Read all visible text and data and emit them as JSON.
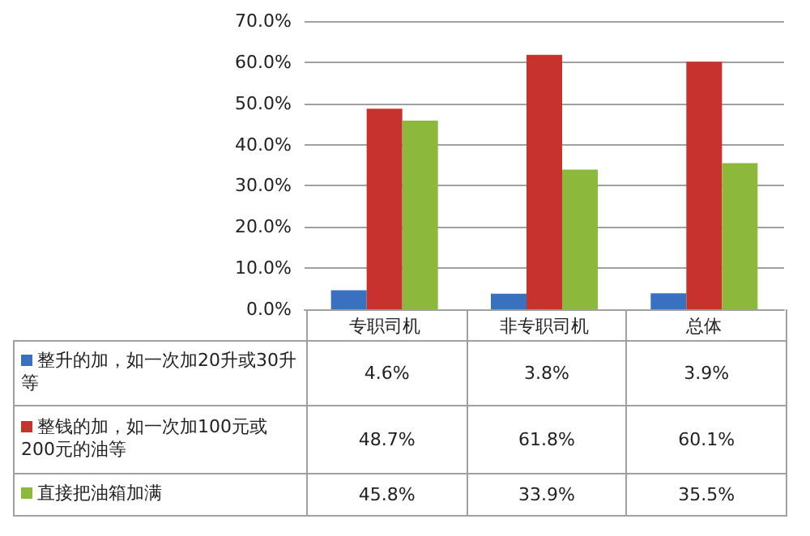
{
  "chart_data": {
    "type": "bar",
    "categories": [
      "专职司机",
      "非专职司机",
      "总体"
    ],
    "series": [
      {
        "name": "整升的加，如一次加20升或30升等",
        "color": "#3a70c0",
        "values": [
          4.6,
          3.8,
          3.9
        ],
        "value_labels": [
          "4.6%",
          "3.8%",
          "3.9%"
        ]
      },
      {
        "name": "整钱的加，如一次加100元或200元的油等",
        "color": "#c8322e",
        "values": [
          48.7,
          61.8,
          60.1
        ],
        "value_labels": [
          "48.7%",
          "61.8%",
          "60.1%"
        ]
      },
      {
        "name": "直接把油箱加满",
        "color": "#8cb83c",
        "values": [
          45.8,
          33.9,
          35.5
        ],
        "value_labels": [
          "45.8%",
          "33.9%",
          "35.5%"
        ]
      }
    ],
    "ylim": [
      0,
      70
    ],
    "yticks": [
      {
        "value": 0,
        "label": "0.0%"
      },
      {
        "value": 10,
        "label": "10.0%"
      },
      {
        "value": 20,
        "label": "20.0%"
      },
      {
        "value": 30,
        "label": "30.0%"
      },
      {
        "value": 40,
        "label": "40.0%"
      },
      {
        "value": 50,
        "label": "50.0%"
      },
      {
        "value": 60,
        "label": "60.0%"
      },
      {
        "value": 70,
        "label": "70.0%"
      }
    ],
    "grid": "y",
    "legend": "bottom"
  }
}
